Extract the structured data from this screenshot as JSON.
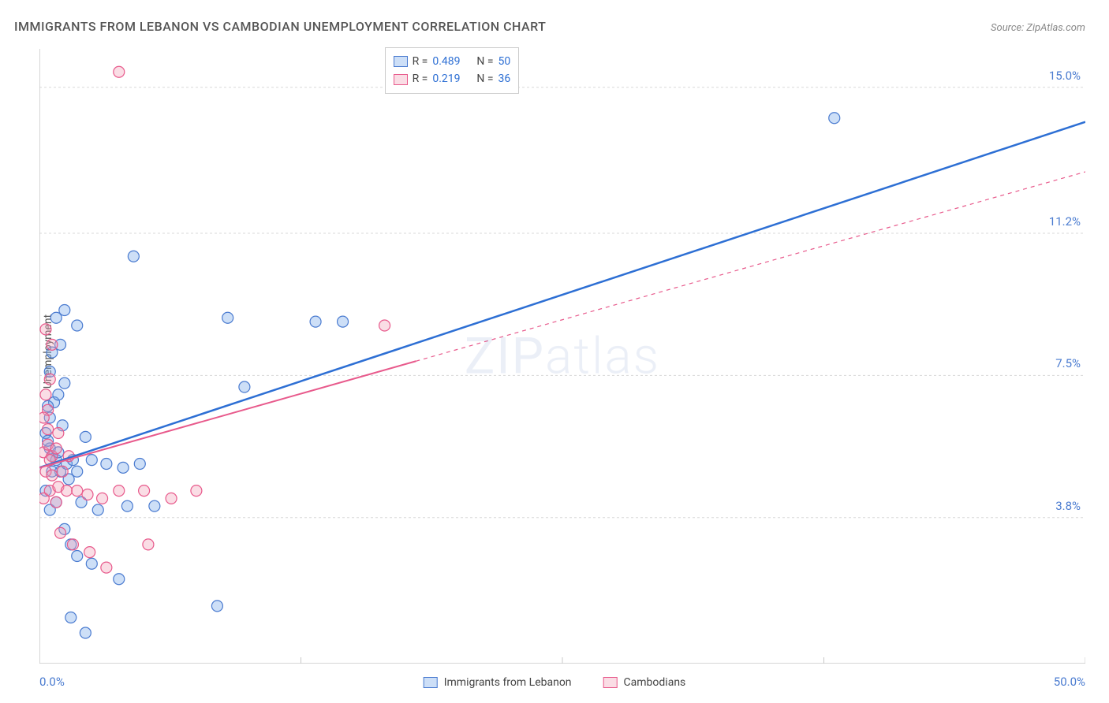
{
  "title": "IMMIGRANTS FROM LEBANON VS CAMBODIAN UNEMPLOYMENT CORRELATION CHART",
  "source": "Source: ZipAtlas.com",
  "y_axis_label": "Unemployment",
  "watermark": "ZIPatlas",
  "chart": {
    "type": "scatter",
    "xlim": [
      0,
      50
    ],
    "ylim": [
      0,
      16
    ],
    "x_min_label": "0.0%",
    "x_max_label": "50.0%",
    "background_color": "#ffffff",
    "grid_color": "#d8d8d8",
    "axis_color": "#c8c8c8",
    "y_gridlines": [
      {
        "y": 3.8,
        "label": "3.8%"
      },
      {
        "y": 7.5,
        "label": "7.5%"
      },
      {
        "y": 11.2,
        "label": "11.2%"
      },
      {
        "y": 15.0,
        "label": "15.0%"
      }
    ],
    "x_ticks": [
      12.5,
      25,
      37.5,
      50
    ],
    "series": [
      {
        "name": "Immigrants from Lebanon",
        "color": "#6fa3e8",
        "fill": "rgba(111,163,232,0.35)",
        "stroke": "#4a7bd0",
        "R": "0.489",
        "N": "50",
        "marker_radius": 7,
        "trend": {
          "x1": 0,
          "y1": 5.1,
          "x2": 50,
          "y2": 14.1,
          "solid_to_x": 50,
          "color": "#2d6fd4",
          "width": 2.5
        },
        "points": [
          [
            0.3,
            6.0
          ],
          [
            0.5,
            5.6
          ],
          [
            0.6,
            5.4
          ],
          [
            0.8,
            5.3
          ],
          [
            0.4,
            5.8
          ],
          [
            0.5,
            6.4
          ],
          [
            0.7,
            6.8
          ],
          [
            0.9,
            7.0
          ],
          [
            1.2,
            7.3
          ],
          [
            0.5,
            7.6
          ],
          [
            1.0,
            5.0
          ],
          [
            1.3,
            5.2
          ],
          [
            1.6,
            5.3
          ],
          [
            1.8,
            5.0
          ],
          [
            2.5,
            5.3
          ],
          [
            3.2,
            5.2
          ],
          [
            4.0,
            5.1
          ],
          [
            4.8,
            5.2
          ],
          [
            2.0,
            4.2
          ],
          [
            2.8,
            4.0
          ],
          [
            4.2,
            4.1
          ],
          [
            5.5,
            4.1
          ],
          [
            1.8,
            2.8
          ],
          [
            2.5,
            2.6
          ],
          [
            3.8,
            2.2
          ],
          [
            1.5,
            1.2
          ],
          [
            2.2,
            0.8
          ],
          [
            8.5,
            1.5
          ],
          [
            4.5,
            10.6
          ],
          [
            0.8,
            9.0
          ],
          [
            1.2,
            9.2
          ],
          [
            1.8,
            8.8
          ],
          [
            0.6,
            8.1
          ],
          [
            1.0,
            8.3
          ],
          [
            9.0,
            9.0
          ],
          [
            9.8,
            7.2
          ],
          [
            13.2,
            8.9
          ],
          [
            14.5,
            8.9
          ],
          [
            0.3,
            4.5
          ],
          [
            0.5,
            4.0
          ],
          [
            0.8,
            4.2
          ],
          [
            1.2,
            3.5
          ],
          [
            1.5,
            3.1
          ],
          [
            2.2,
            5.9
          ],
          [
            38.0,
            14.2
          ],
          [
            0.4,
            6.7
          ],
          [
            0.6,
            5.0
          ],
          [
            0.9,
            5.5
          ],
          [
            1.1,
            6.2
          ],
          [
            1.4,
            4.8
          ]
        ]
      },
      {
        "name": "Cambodians",
        "color": "#f29db5",
        "fill": "rgba(242,157,181,0.35)",
        "stroke": "#e85a8c",
        "R": "0.219",
        "N": "36",
        "marker_radius": 7,
        "trend": {
          "x1": 0,
          "y1": 5.1,
          "x2": 50,
          "y2": 12.8,
          "solid_to_x": 18,
          "color": "#e85a8c",
          "width": 2
        },
        "points": [
          [
            0.2,
            5.5
          ],
          [
            0.4,
            5.7
          ],
          [
            0.6,
            5.4
          ],
          [
            0.3,
            5.0
          ],
          [
            0.5,
            5.3
          ],
          [
            0.8,
            5.6
          ],
          [
            0.4,
            6.1
          ],
          [
            0.6,
            8.3
          ],
          [
            0.3,
            8.7
          ],
          [
            0.2,
            4.3
          ],
          [
            0.5,
            4.5
          ],
          [
            0.9,
            4.6
          ],
          [
            1.3,
            4.5
          ],
          [
            1.8,
            4.5
          ],
          [
            2.3,
            4.4
          ],
          [
            3.0,
            4.3
          ],
          [
            3.8,
            4.5
          ],
          [
            5.0,
            4.5
          ],
          [
            6.3,
            4.3
          ],
          [
            7.5,
            4.5
          ],
          [
            1.0,
            3.4
          ],
          [
            1.6,
            3.1
          ],
          [
            2.4,
            2.9
          ],
          [
            3.2,
            2.5
          ],
          [
            5.2,
            3.1
          ],
          [
            0.4,
            6.6
          ],
          [
            3.8,
            15.4
          ],
          [
            16.5,
            8.8
          ],
          [
            0.3,
            7.0
          ],
          [
            0.5,
            7.4
          ],
          [
            0.2,
            6.4
          ],
          [
            0.6,
            4.9
          ],
          [
            0.8,
            4.2
          ],
          [
            1.1,
            5.0
          ],
          [
            1.4,
            5.4
          ],
          [
            0.9,
            6.0
          ]
        ]
      }
    ]
  },
  "legend": {
    "stat_labels": {
      "R": "R =",
      "N": "N ="
    },
    "bottom": [
      {
        "label": "Immigrants from Lebanon",
        "swatch_fill": "rgba(111,163,232,0.35)",
        "swatch_border": "#4a7bd0"
      },
      {
        "label": "Cambodians",
        "swatch_fill": "rgba(242,157,181,0.35)",
        "swatch_border": "#e85a8c"
      }
    ]
  }
}
